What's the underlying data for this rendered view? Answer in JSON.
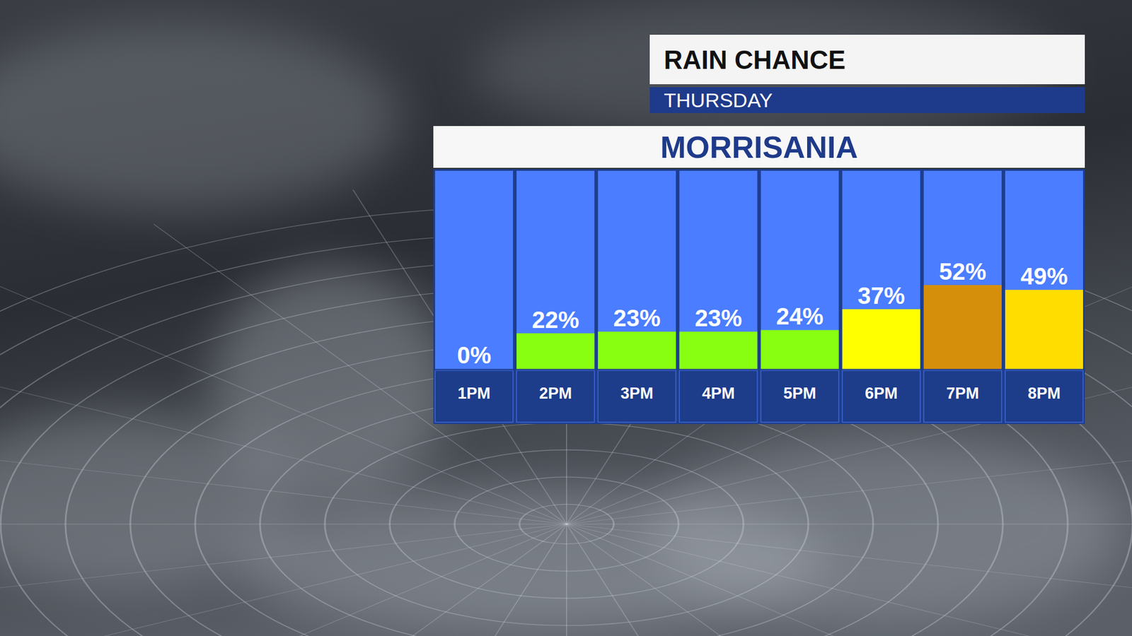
{
  "chart_data": {
    "type": "bar",
    "title": "RAIN CHANCE",
    "subtitle": "THURSDAY",
    "annotations": [
      "MORRISANIA"
    ],
    "categories": [
      "1PM",
      "2PM",
      "3PM",
      "4PM",
      "5PM",
      "6PM",
      "7PM",
      "8PM"
    ],
    "values": [
      0,
      22,
      23,
      23,
      24,
      37,
      52,
      49
    ],
    "value_labels": [
      "0%",
      "22%",
      "23%",
      "23%",
      "24%",
      "37%",
      "52%",
      "49%"
    ],
    "colors": [
      "#ffffff",
      "#88ff11",
      "#88ff11",
      "#88ff11",
      "#88ff11",
      "#ffff00",
      "#d68f0a",
      "#ffdd00"
    ],
    "ylim": [
      0,
      100
    ],
    "data_labels": true,
    "tick_labels": "x"
  }
}
